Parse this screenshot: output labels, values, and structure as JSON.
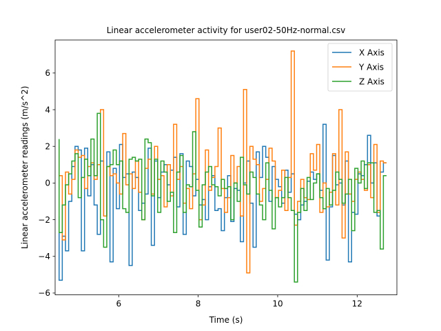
{
  "chart_data": {
    "type": "line",
    "title": "Linear accelerometer activity for user02-50Hz-normal.csv",
    "xlabel": "Time (s)",
    "ylabel": "Linear accelerometer readings (m/s^2)",
    "xlim": [
      4.4,
      13.0
    ],
    "ylim": [
      -6.1,
      7.8
    ],
    "xticks": [
      6,
      8,
      10,
      12
    ],
    "yticks": [
      -6,
      -4,
      -2,
      0,
      2,
      4,
      6
    ],
    "grid": false,
    "legend": "top-right",
    "step": true,
    "series": [
      {
        "name": "X Axis",
        "color": "#1f77b4",
        "x": [
          4.5,
          4.58,
          4.66,
          4.74,
          4.82,
          4.9,
          4.98,
          5.06,
          5.14,
          5.22,
          5.3,
          5.38,
          5.46,
          5.54,
          5.62,
          5.7,
          5.78,
          5.86,
          5.94,
          6.02,
          6.1,
          6.18,
          6.26,
          6.34,
          6.42,
          6.5,
          6.58,
          6.66,
          6.74,
          6.82,
          6.9,
          6.98,
          7.06,
          7.14,
          7.22,
          7.3,
          7.38,
          7.46,
          7.54,
          7.62,
          7.7,
          7.78,
          7.86,
          7.94,
          8.02,
          8.1,
          8.18,
          8.26,
          8.34,
          8.42,
          8.5,
          8.58,
          8.66,
          8.74,
          8.82,
          8.9,
          8.98,
          9.06,
          9.14,
          9.22,
          9.3,
          9.38,
          9.46,
          9.54,
          9.62,
          9.7,
          9.78,
          9.86,
          9.94,
          10.02,
          10.1,
          10.18,
          10.26,
          10.34,
          10.42,
          10.5,
          10.58,
          10.66,
          10.74,
          10.82,
          10.9,
          10.98,
          11.06,
          11.14,
          11.22,
          11.3,
          11.38,
          11.46,
          11.54,
          11.62,
          11.7,
          11.78,
          11.86,
          11.94,
          12.02,
          12.1,
          12.18,
          12.26,
          12.34,
          12.42,
          12.5,
          12.58,
          12.66,
          12.74
        ],
        "values": [
          -1.8,
          -5.3,
          -2.9,
          -3.7,
          -1.0,
          0.9,
          2.0,
          1.8,
          -3.7,
          1.9,
          -0.7,
          1.0,
          -1.2,
          -2.8,
          1.2,
          -1.8,
          1.7,
          -4.3,
          0.8,
          -1.4,
          2.1,
          0.3,
          0.5,
          -4.5,
          0.6,
          0.3,
          -1.5,
          -1.1,
          -0.6,
          1.9,
          -3.4,
          1.2,
          -0.8,
          0.6,
          1.0,
          -0.1,
          0.7,
          1.4,
          -1.3,
          1.6,
          -2.8,
          1.2,
          0.9,
          -0.7,
          0.2,
          -1.2,
          -0.9,
          -2.0,
          -0.2,
          0.4,
          -1.5,
          -1.4,
          -2.6,
          -0.8,
          0.4,
          -2.1,
          -0.3,
          -0.4,
          -3.2,
          0.0,
          1.2,
          -1.1,
          -3.5,
          1.7,
          0.3,
          2.0,
          1.4,
          -1.0,
          0.9,
          0.2,
          -0.2,
          -1.1,
          0.7,
          -0.5,
          0.5,
          -1.7,
          -2.0,
          -1.2,
          -1.0,
          0.1,
          0.6,
          0.2,
          0.5,
          -0.4,
          3.2,
          -4.2,
          -1.3,
          1.5,
          -0.1,
          0.0,
          -1.2,
          1.2,
          -4.3,
          -1.6,
          -1.7,
          0.5,
          0.4,
          1.0,
          2.6,
          0.0,
          1.1,
          -1.8,
          0.6,
          1.1
        ]
      },
      {
        "name": "Y Axis",
        "color": "#ff7f0e",
        "x": [
          4.5,
          4.58,
          4.66,
          4.74,
          4.82,
          4.9,
          4.98,
          5.06,
          5.14,
          5.22,
          5.3,
          5.38,
          5.46,
          5.54,
          5.62,
          5.7,
          5.78,
          5.86,
          5.94,
          6.02,
          6.1,
          6.18,
          6.26,
          6.34,
          6.42,
          6.5,
          6.58,
          6.66,
          6.74,
          6.82,
          6.9,
          6.98,
          7.06,
          7.14,
          7.22,
          7.3,
          7.38,
          7.46,
          7.54,
          7.62,
          7.7,
          7.78,
          7.86,
          7.94,
          8.02,
          8.1,
          8.18,
          8.26,
          8.34,
          8.42,
          8.5,
          8.58,
          8.66,
          8.74,
          8.82,
          8.9,
          8.98,
          9.06,
          9.14,
          9.22,
          9.3,
          9.38,
          9.46,
          9.54,
          9.62,
          9.7,
          9.78,
          9.86,
          9.94,
          10.02,
          10.1,
          10.18,
          10.26,
          10.34,
          10.42,
          10.5,
          10.58,
          10.66,
          10.74,
          10.82,
          10.9,
          10.98,
          11.06,
          11.14,
          11.22,
          11.3,
          11.38,
          11.46,
          11.54,
          11.62,
          11.7,
          11.78,
          11.86,
          11.94,
          12.02,
          12.1,
          12.18,
          12.26,
          12.34,
          12.42,
          12.5,
          12.58,
          12.66,
          12.74
        ],
        "values": [
          2.0,
          0.4,
          -3.1,
          0.6,
          -0.6,
          0.2,
          1.8,
          1.4,
          1.5,
          -0.3,
          0.9,
          1.1,
          0.2,
          1.0,
          4.0,
          -1.8,
          0.9,
          0.4,
          0.5,
          0.0,
          -0.6,
          2.7,
          -0.1,
          0.5,
          -0.3,
          1.2,
          -0.5,
          -2.0,
          0.8,
          1.3,
          -0.6,
          2.0,
          0.2,
          0.4,
          -1.3,
          1.0,
          -0.7,
          3.2,
          0.2,
          0.9,
          -1.1,
          -0.3,
          -1.4,
          0.5,
          4.6,
          -2.0,
          -1.2,
          1.8,
          -0.4,
          0.3,
          0.9,
          3.0,
          -0.3,
          -1.6,
          -0.8,
          1.5,
          0.0,
          0.9,
          -1.8,
          5.1,
          -4.9,
          2.0,
          1.3,
          1.0,
          -1.0,
          -0.3,
          0.2,
          1.9,
          1.2,
          -0.8,
          -0.4,
          0.7,
          -1.5,
          0.3,
          7.2,
          -2.3,
          -1.0,
          0.2,
          -0.8,
          -0.9,
          1.6,
          0.7,
          2.1,
          -1.6,
          0.0,
          -1.3,
          -0.5,
          1.6,
          -1.2,
          4.0,
          -3.0,
          1.7,
          -0.6,
          -1.0,
          0.2,
          0.6,
          0.2,
          -0.4,
          1.0,
          -0.8,
          2.1,
          -1.6,
          1.2,
          1.1
        ]
      },
      {
        "name": "Z Axis",
        "color": "#2ca02c",
        "x": [
          4.5,
          4.58,
          4.66,
          4.74,
          4.82,
          4.9,
          4.98,
          5.06,
          5.14,
          5.22,
          5.3,
          5.38,
          5.46,
          5.54,
          5.62,
          5.7,
          5.78,
          5.86,
          5.94,
          6.02,
          6.1,
          6.18,
          6.26,
          6.34,
          6.42,
          6.5,
          6.58,
          6.66,
          6.74,
          6.82,
          6.9,
          6.98,
          7.06,
          7.14,
          7.22,
          7.3,
          7.38,
          7.46,
          7.54,
          7.62,
          7.7,
          7.78,
          7.86,
          7.94,
          8.02,
          8.1,
          8.18,
          8.26,
          8.34,
          8.42,
          8.5,
          8.58,
          8.66,
          8.74,
          8.82,
          8.9,
          8.98,
          9.06,
          9.14,
          9.22,
          9.3,
          9.38,
          9.46,
          9.54,
          9.62,
          9.7,
          9.78,
          9.86,
          9.94,
          10.02,
          10.1,
          10.18,
          10.26,
          10.34,
          10.42,
          10.5,
          10.58,
          10.66,
          10.74,
          10.82,
          10.9,
          10.98,
          11.06,
          11.14,
          11.22,
          11.3,
          11.38,
          11.46,
          11.54,
          11.62,
          11.7,
          11.78,
          11.86,
          11.94,
          12.02,
          12.1,
          12.18,
          12.26,
          12.34,
          12.42,
          12.5,
          12.58,
          12.66,
          12.74
        ],
        "values": [
          2.4,
          -2.7,
          -1.2,
          -0.1,
          0.5,
          1.2,
          1.6,
          -0.8,
          0.3,
          1.3,
          0.4,
          2.4,
          0.4,
          3.8,
          -2.0,
          -3.5,
          0.9,
          1.0,
          1.8,
          1.0,
          1.2,
          -1.4,
          -1.6,
          1.3,
          1.4,
          1.2,
          1.3,
          -2.0,
          2.4,
          2.2,
          -0.7,
          1.3,
          -1.6,
          1.2,
          0.6,
          -1.0,
          -0.5,
          -2.7,
          0.6,
          1.5,
          -1.6,
          -0.1,
          -0.2,
          2.8,
          -0.4,
          -2.4,
          -0.1,
          0.6,
          0.9,
          -0.1,
          -0.2,
          -0.7,
          0.2,
          -0.3,
          -0.2,
          -2.0,
          0.0,
          -1.0,
          1.4,
          -0.1,
          -0.6,
          0.6,
          0.3,
          -0.6,
          -1.2,
          -2.0,
          1.1,
          -0.4,
          -2.5,
          -0.8,
          -1.3,
          -0.8,
          0.3,
          -0.8,
          -1.5,
          -5.4,
          -1.6,
          -0.3,
          -1.5,
          0.3,
          -0.9,
          0.0,
          0.5,
          -0.8,
          -1.4,
          -0.3,
          -1.2,
          -0.4,
          0.6,
          0.2,
          -1.1,
          -0.6,
          0.2,
          -2.6,
          0.8,
          0.0,
          1.2,
          -0.3,
          1.1,
          1.1,
          -1.6,
          -1.5,
          -3.6,
          0.4
        ]
      }
    ]
  }
}
